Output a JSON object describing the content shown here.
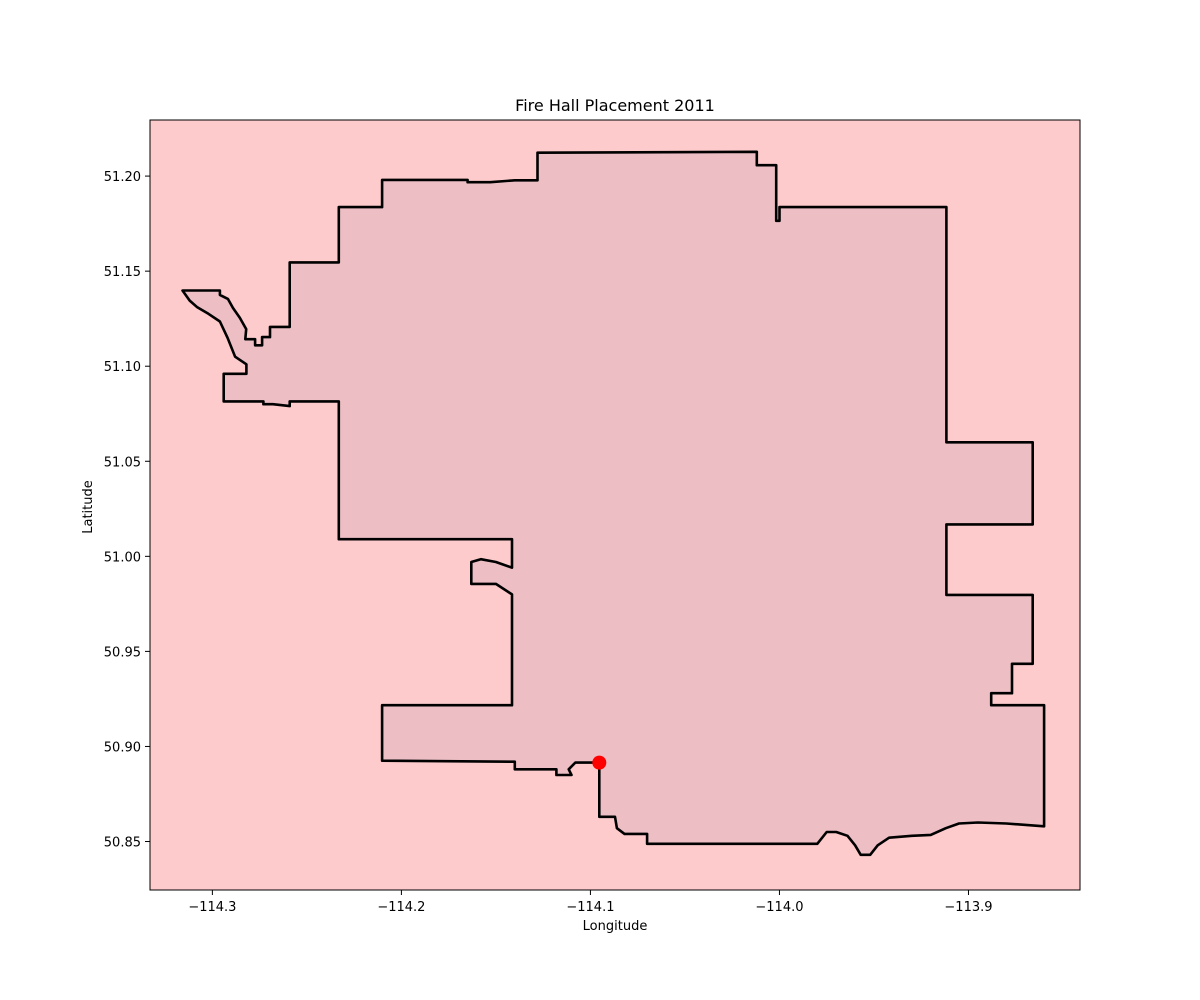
{
  "chart_data": {
    "type": "scatter",
    "title": "Fire Hall Placement 2011",
    "xlabel": "Longitude",
    "ylabel": "Latitude",
    "xlim": [
      -114.333,
      -113.841
    ],
    "ylim": [
      50.8245,
      51.2295
    ],
    "grid": false,
    "x_ticks": [
      {
        "value": -114.3,
        "label": "−114.3"
      },
      {
        "value": -114.2,
        "label": "−114.2"
      },
      {
        "value": -114.1,
        "label": "−114.1"
      },
      {
        "value": -114.0,
        "label": "−114.0"
      },
      {
        "value": -113.9,
        "label": "−113.9"
      }
    ],
    "y_ticks": [
      {
        "value": 50.85,
        "label": "50.85"
      },
      {
        "value": 50.9,
        "label": "50.90"
      },
      {
        "value": 50.95,
        "label": "50.95"
      },
      {
        "value": 51.0,
        "label": "51.00"
      },
      {
        "value": 51.05,
        "label": "51.05"
      },
      {
        "value": 51.1,
        "label": "51.10"
      },
      {
        "value": 51.15,
        "label": "51.15"
      },
      {
        "value": 51.2,
        "label": "51.20"
      }
    ],
    "points": [
      {
        "lon": -114.0953,
        "lat": 50.8915
      }
    ],
    "boundary": [
      [
        -114.3158,
        51.1398
      ],
      [
        -114.296,
        51.1398
      ],
      [
        -114.296,
        51.1375
      ],
      [
        -114.2918,
        51.1354
      ],
      [
        -114.2891,
        51.1306
      ],
      [
        -114.2855,
        51.1255
      ],
      [
        -114.2821,
        51.1195
      ],
      [
        -114.2826,
        51.1142
      ],
      [
        -114.2774,
        51.1142
      ],
      [
        -114.2774,
        51.111
      ],
      [
        -114.2737,
        51.111
      ],
      [
        -114.2737,
        51.1153
      ],
      [
        -114.2695,
        51.1153
      ],
      [
        -114.2695,
        51.1207
      ],
      [
        -114.2591,
        51.1207
      ],
      [
        -114.2591,
        51.1546
      ],
      [
        -114.2331,
        51.1546
      ],
      [
        -114.2331,
        51.1837
      ],
      [
        -114.2102,
        51.1837
      ],
      [
        -114.2102,
        51.198
      ],
      [
        -114.165,
        51.198
      ],
      [
        -114.165,
        51.1968
      ],
      [
        -114.153,
        51.1968
      ],
      [
        -114.14,
        51.1978
      ],
      [
        -114.128,
        51.1978
      ],
      [
        -114.128,
        51.2123
      ],
      [
        -114.012,
        51.2128
      ],
      [
        -114.012,
        51.2057
      ],
      [
        -114.0017,
        51.2057
      ],
      [
        -114.0017,
        51.1765
      ],
      [
        -114.0,
        51.1765
      ],
      [
        -114.0,
        51.1837
      ],
      [
        -113.9117,
        51.1837
      ],
      [
        -113.9117,
        51.06
      ],
      [
        -113.866,
        51.06
      ],
      [
        -113.866,
        51.0168
      ],
      [
        -113.9117,
        51.0168
      ],
      [
        -113.9117,
        50.9797
      ],
      [
        -113.866,
        50.9797
      ],
      [
        -113.866,
        50.9435
      ],
      [
        -113.877,
        50.9435
      ],
      [
        -113.877,
        50.928
      ],
      [
        -113.888,
        50.928
      ],
      [
        -113.888,
        50.9217
      ],
      [
        -113.86,
        50.9217
      ],
      [
        -113.86,
        50.858
      ],
      [
        -113.88,
        50.8595
      ],
      [
        -113.895,
        50.86
      ],
      [
        -113.905,
        50.8595
      ],
      [
        -113.912,
        50.857
      ],
      [
        -113.92,
        50.8535
      ],
      [
        -113.93,
        50.853
      ],
      [
        -113.942,
        50.852
      ],
      [
        -113.948,
        50.848
      ],
      [
        -113.952,
        50.843
      ],
      [
        -113.957,
        50.843
      ],
      [
        -113.96,
        50.848
      ],
      [
        -113.964,
        50.853
      ],
      [
        -113.97,
        50.855
      ],
      [
        -113.975,
        50.855
      ],
      [
        -113.98,
        50.8488
      ],
      [
        -114.07,
        50.8488
      ],
      [
        -114.07,
        50.854
      ],
      [
        -114.077,
        50.854
      ],
      [
        -114.082,
        50.854
      ],
      [
        -114.086,
        50.857
      ],
      [
        -114.087,
        50.863
      ],
      [
        -114.0953,
        50.863
      ],
      [
        -114.0953,
        50.8915
      ],
      [
        -114.108,
        50.8915
      ],
      [
        -114.1115,
        50.888
      ],
      [
        -114.11,
        50.885
      ],
      [
        -114.118,
        50.885
      ],
      [
        -114.118,
        50.888
      ],
      [
        -114.14,
        50.888
      ],
      [
        -114.14,
        50.892
      ],
      [
        -114.2102,
        50.8925
      ],
      [
        -114.2102,
        50.9217
      ],
      [
        -114.1415,
        50.9217
      ],
      [
        -114.1415,
        50.98
      ],
      [
        -114.15,
        50.9855
      ],
      [
        -114.163,
        50.9855
      ],
      [
        -114.163,
        50.997
      ],
      [
        -114.158,
        50.9985
      ],
      [
        -114.15,
        50.997
      ],
      [
        -114.1415,
        50.994
      ],
      [
        -114.1415,
        51.009
      ],
      [
        -114.2331,
        51.009
      ],
      [
        -114.2331,
        51.0815
      ],
      [
        -114.2591,
        51.0815
      ],
      [
        -114.2591,
        51.079
      ],
      [
        -114.268,
        51.08
      ],
      [
        -114.273,
        51.08
      ],
      [
        -114.273,
        51.0815
      ],
      [
        -114.294,
        51.0815
      ],
      [
        -114.294,
        51.096
      ],
      [
        -114.282,
        51.096
      ],
      [
        -114.282,
        51.101
      ],
      [
        -114.288,
        51.105
      ],
      [
        -114.292,
        51.115
      ],
      [
        -114.296,
        51.1235
      ],
      [
        -114.302,
        51.1275
      ],
      [
        -114.308,
        51.131
      ],
      [
        -114.312,
        51.1345
      ],
      [
        -114.3158,
        51.1398
      ]
    ],
    "colors": {
      "background": "#fdcbcb",
      "fill": "#edbfc4",
      "boundary": "#000000",
      "point": "#ff0000"
    }
  }
}
